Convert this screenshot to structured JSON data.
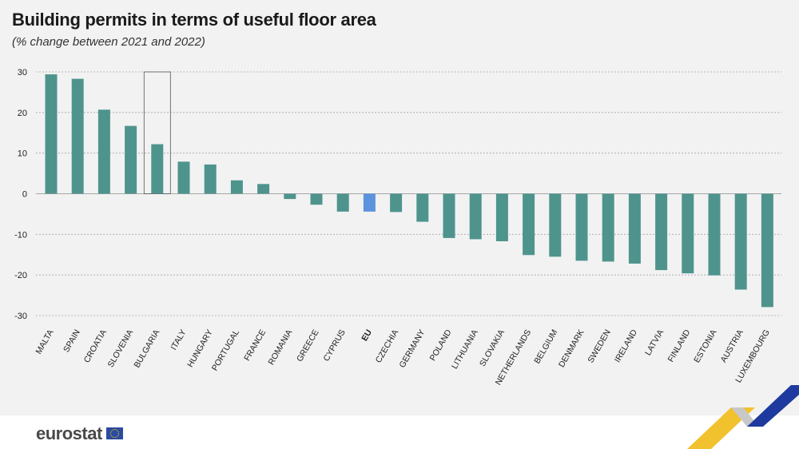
{
  "header": {
    "title": "Building permits in terms of useful floor area",
    "subtitle": "(% change between 2021 and 2022)"
  },
  "footer": {
    "brand": "eurostat"
  },
  "colors": {
    "bar": "#4e948d",
    "eu_bar": "#5b93dc",
    "grid": "#a6a6a6",
    "background": "#f2f2f2"
  },
  "chart_data": {
    "type": "bar",
    "title": "Building permits in terms of useful floor area",
    "subtitle": "(% change between 2021 and 2022)",
    "xlabel": "",
    "ylabel": "",
    "ylim": [
      -30,
      30
    ],
    "yticks": [
      30,
      20,
      10,
      0,
      -10,
      -20,
      -30
    ],
    "grid": true,
    "highlighted_category": "EU",
    "outlined_category": "BULGARIA",
    "categories": [
      "MALTA",
      "SPAIN",
      "CROATIA",
      "SLOVENIA",
      "BULGARIA",
      "ITALY",
      "HUNGARY",
      "PORTUGAL",
      "FRANCE",
      "ROMANIA",
      "GREECE",
      "CYPRUS",
      "EU",
      "CZECHIA",
      "GERMANY",
      "POLAND",
      "LITHUANIA",
      "SLOVAKIA",
      "NETHERLANDS",
      "BELGIUM",
      "DENMARK",
      "SWEDEN",
      "IRELAND",
      "LATVIA",
      "FINLAND",
      "ESTONIA",
      "AUSTRIA",
      "LUXEMBOURG"
    ],
    "values": [
      29.4,
      28.3,
      20.7,
      16.7,
      12.2,
      7.9,
      7.2,
      3.3,
      2.4,
      -1.3,
      -2.7,
      -4.4,
      -4.4,
      -4.5,
      -6.9,
      -10.9,
      -11.2,
      -11.7,
      -15.1,
      -15.5,
      -16.5,
      -16.7,
      -17.2,
      -18.8,
      -19.6,
      -20.1,
      -23.6,
      -27.9
    ]
  }
}
